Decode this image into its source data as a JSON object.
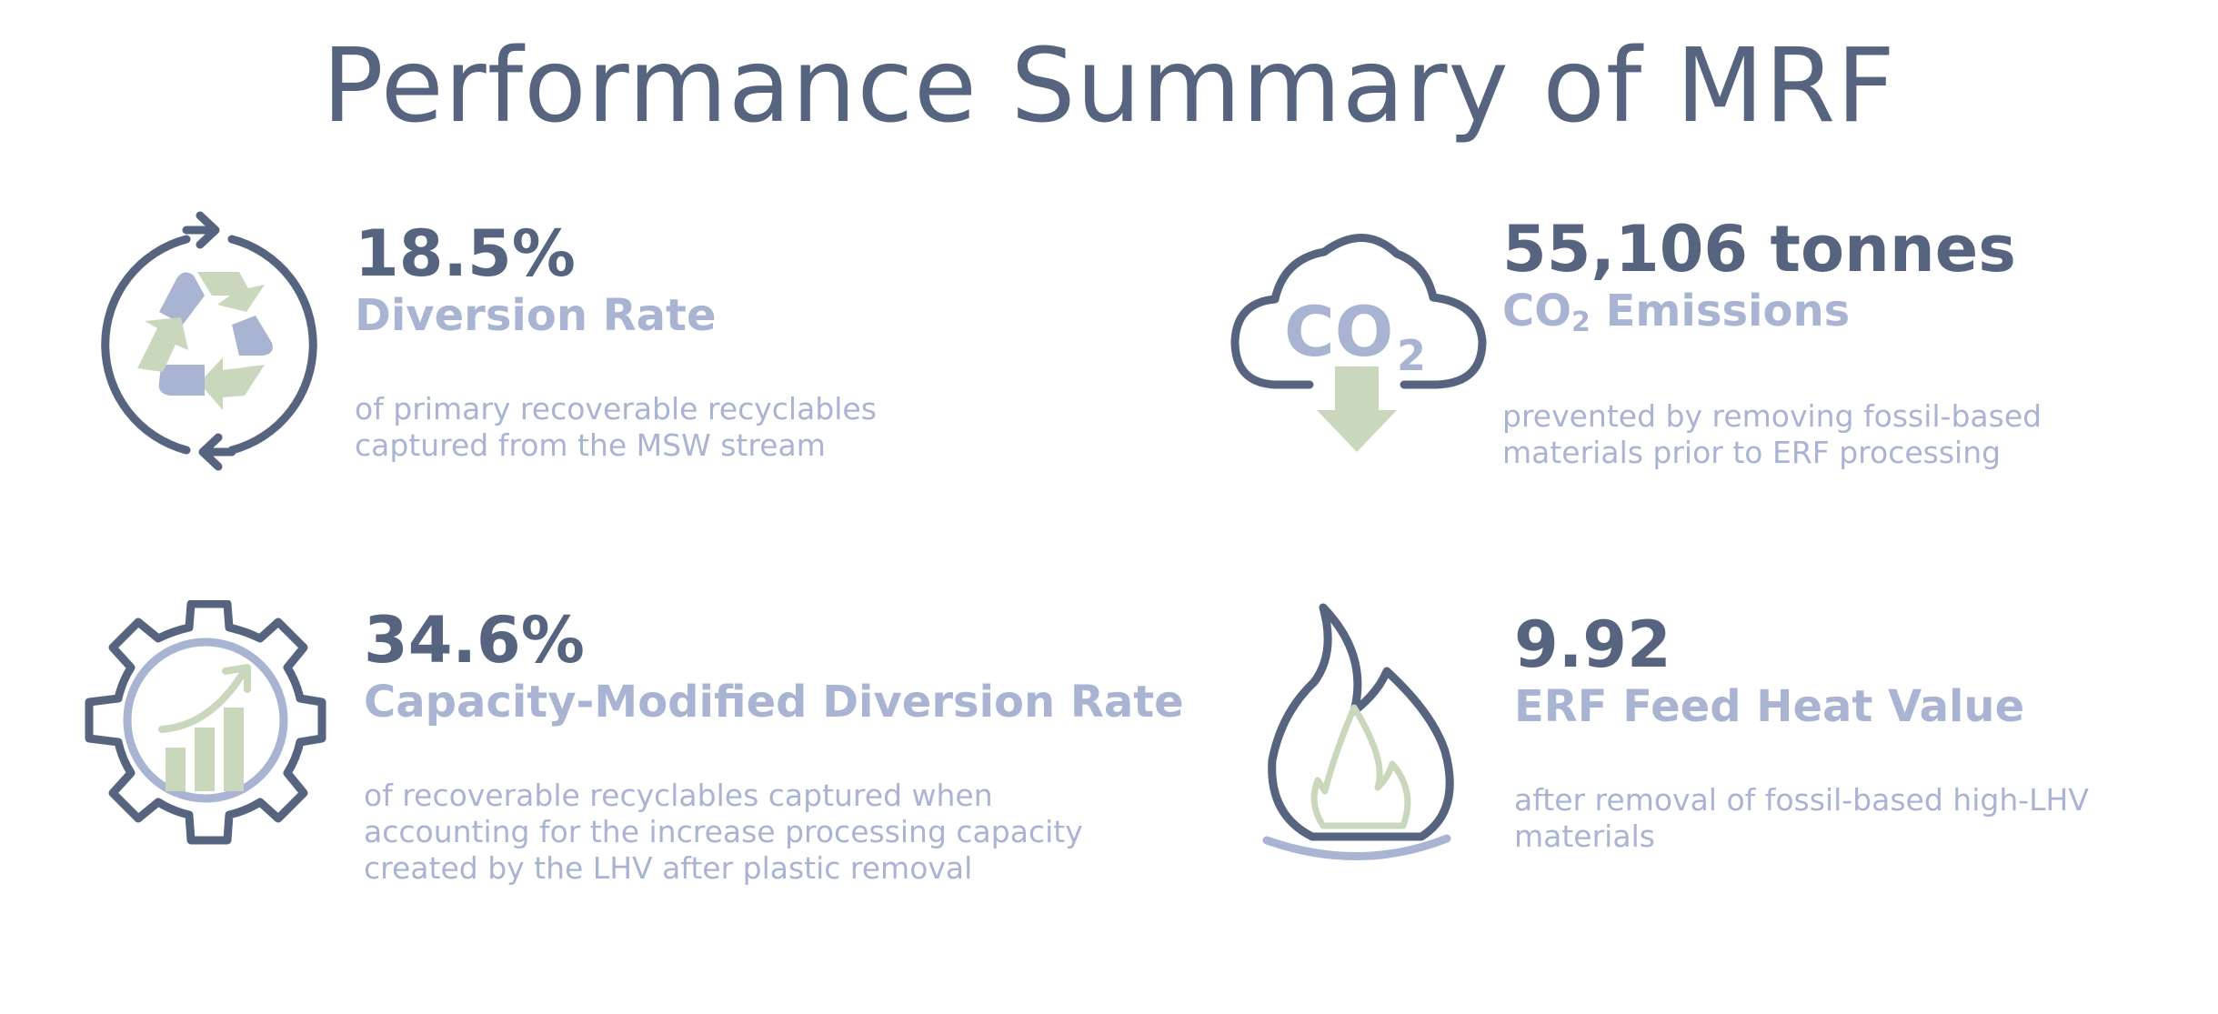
{
  "title": "Performance Summary of MRF",
  "colors": {
    "dark": "#56647f",
    "light": "#a9b4d3",
    "green": "#c9d8bd"
  },
  "metrics": [
    {
      "value": "18.5%",
      "label": "Diversion Rate",
      "description": "of primary recoverable recyclables captured from the MSW stream",
      "icon": "recycle-icon"
    },
    {
      "value": "55,106 tonnes",
      "label_main": "CO",
      "label_sub": "2",
      "label_rest": " Emissions",
      "description": "prevented by removing fossil-based materials prior to ERF processing",
      "icon": "co2-cloud-icon",
      "icon_text": "CO",
      "icon_sub": "2"
    },
    {
      "value": "34.6%",
      "label": "Capacity-Modified Diversion Rate",
      "description": "of recoverable recyclables captured when accounting for the increase processing capacity created by the LHV after plastic removal",
      "icon": "gear-growth-icon"
    },
    {
      "value": "9.92",
      "label": "ERF Feed Heat Value",
      "description": "after removal of fossil-based high-LHV materials",
      "icon": "flame-icon"
    }
  ]
}
